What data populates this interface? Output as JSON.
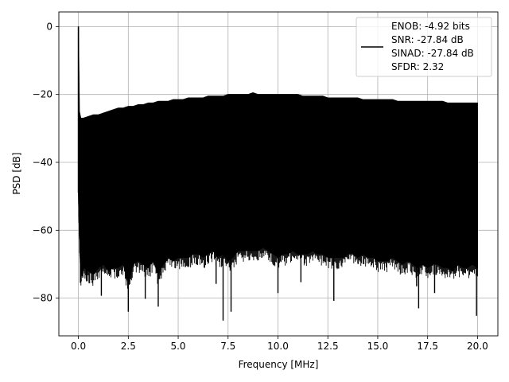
{
  "chart_data": {
    "type": "line",
    "title": "",
    "xlabel": "Frequency [MHz]",
    "ylabel": "PSD [dB]",
    "xlim": [
      -0.98,
      21.02
    ],
    "ylim": [
      -91.1,
      4.3
    ],
    "xticks": [
      0.0,
      2.5,
      5.0,
      7.5,
      10.0,
      12.5,
      15.0,
      17.5,
      20.0
    ],
    "xtick_labels": [
      "0.0",
      "2.5",
      "5.0",
      "7.5",
      "10.0",
      "12.5",
      "15.0",
      "17.5",
      "20.0"
    ],
    "yticks": [
      0,
      -20,
      -40,
      -60,
      -80
    ],
    "ytick_labels": [
      "0",
      "−20",
      "−40",
      "−60",
      "−80"
    ],
    "grid": true,
    "legend": {
      "placement": "top-right",
      "entries": [
        "ENOB: -4.92 bits",
        "SNR: -27.84 dB",
        "SINAD: -27.84 dB",
        "SFDR: 2.32"
      ]
    },
    "series": [
      {
        "color": "#000000",
        "x": [
          0.0,
          0.05,
          0.12,
          0.25,
          0.5,
          0.75,
          1.0,
          1.25,
          1.5,
          1.75,
          2.0,
          2.25,
          2.5,
          2.75,
          3.0,
          3.25,
          3.5,
          3.75,
          4.0,
          4.25,
          4.5,
          4.75,
          5.0,
          5.25,
          5.5,
          5.75,
          6.0,
          6.25,
          6.5,
          6.75,
          7.0,
          7.25,
          7.5,
          7.75,
          8.0,
          8.25,
          8.5,
          8.75,
          9.0,
          9.25,
          9.5,
          9.75,
          10.0,
          10.25,
          10.5,
          10.75,
          11.0,
          11.25,
          11.5,
          11.75,
          12.0,
          12.25,
          12.5,
          12.75,
          13.0,
          13.25,
          13.5,
          13.75,
          14.0,
          14.25,
          14.5,
          14.75,
          15.0,
          15.25,
          15.5,
          15.75,
          16.0,
          16.25,
          16.5,
          16.75,
          17.0,
          17.25,
          17.5,
          17.75,
          18.0,
          18.25,
          18.5,
          18.75,
          19.0,
          19.25,
          19.5,
          19.75,
          20.0
        ],
        "upper": [
          0.0,
          -25,
          -27,
          -27,
          -26.5,
          -26,
          -26,
          -25.5,
          -25,
          -24.5,
          -24,
          -24,
          -23.5,
          -23.5,
          -23,
          -23,
          -22.5,
          -22.5,
          -22,
          -22,
          -22,
          -21.5,
          -21.5,
          -21.5,
          -21,
          -21,
          -21,
          -21,
          -20.5,
          -20.5,
          -20.5,
          -20.5,
          -20,
          -20,
          -20,
          -20,
          -20,
          -19.5,
          -20,
          -20,
          -20,
          -20,
          -20,
          -20,
          -20,
          -20,
          -20,
          -20.5,
          -20.5,
          -20.5,
          -20.5,
          -20.5,
          -21,
          -21,
          -21,
          -21,
          -21,
          -21,
          -21,
          -21.5,
          -21.5,
          -21.5,
          -21.5,
          -21.5,
          -21.5,
          -21.5,
          -22,
          -22,
          -22,
          -22,
          -22,
          -22,
          -22,
          -22,
          -22,
          -22,
          -22.5,
          -22.5,
          -22.5,
          -22.5,
          -22.5,
          -22.5,
          -22.5
        ],
        "lower": [
          -49,
          -62,
          -74,
          -71,
          -72,
          -73,
          -71,
          -70,
          -72,
          -71,
          -71,
          -70,
          -76,
          -70,
          -69,
          -70,
          -71,
          -69,
          -73,
          -70,
          -68,
          -69,
          -68,
          -68,
          -68,
          -67,
          -67,
          -68,
          -67,
          -66,
          -68,
          -67,
          -69,
          -68,
          -66,
          -66,
          -66,
          -66,
          -66,
          -65,
          -66,
          -67,
          -68,
          -67,
          -67,
          -66,
          -67,
          -67,
          -67,
          -66,
          -67,
          -67,
          -68,
          -68,
          -68,
          -68,
          -67,
          -67,
          -68,
          -67,
          -68,
          -68,
          -69,
          -69,
          -69,
          -68,
          -69,
          -70,
          -69,
          -70,
          -71,
          -70,
          -71,
          -70,
          -70,
          -71,
          -71,
          -72,
          -70,
          -71,
          -71,
          -70,
          -71
        ],
        "spikes": [
          {
            "x": 0.1,
            "y": -75.5
          },
          {
            "x": 0.4,
            "y": -74.8
          },
          {
            "x": 1.15,
            "y": -79.3
          },
          {
            "x": 2.5,
            "y": -84.0
          },
          {
            "x": 3.35,
            "y": -80.2
          },
          {
            "x": 4.0,
            "y": -82.5
          },
          {
            "x": 6.9,
            "y": -75.8
          },
          {
            "x": 7.25,
            "y": -86.6
          },
          {
            "x": 7.65,
            "y": -84.0
          },
          {
            "x": 10.0,
            "y": -78.5
          },
          {
            "x": 11.15,
            "y": -75.3
          },
          {
            "x": 12.8,
            "y": -80.8
          },
          {
            "x": 16.95,
            "y": -76.5
          },
          {
            "x": 17.05,
            "y": -83.0
          },
          {
            "x": 17.85,
            "y": -78.5
          },
          {
            "x": 19.95,
            "y": -85.2
          }
        ]
      }
    ]
  }
}
